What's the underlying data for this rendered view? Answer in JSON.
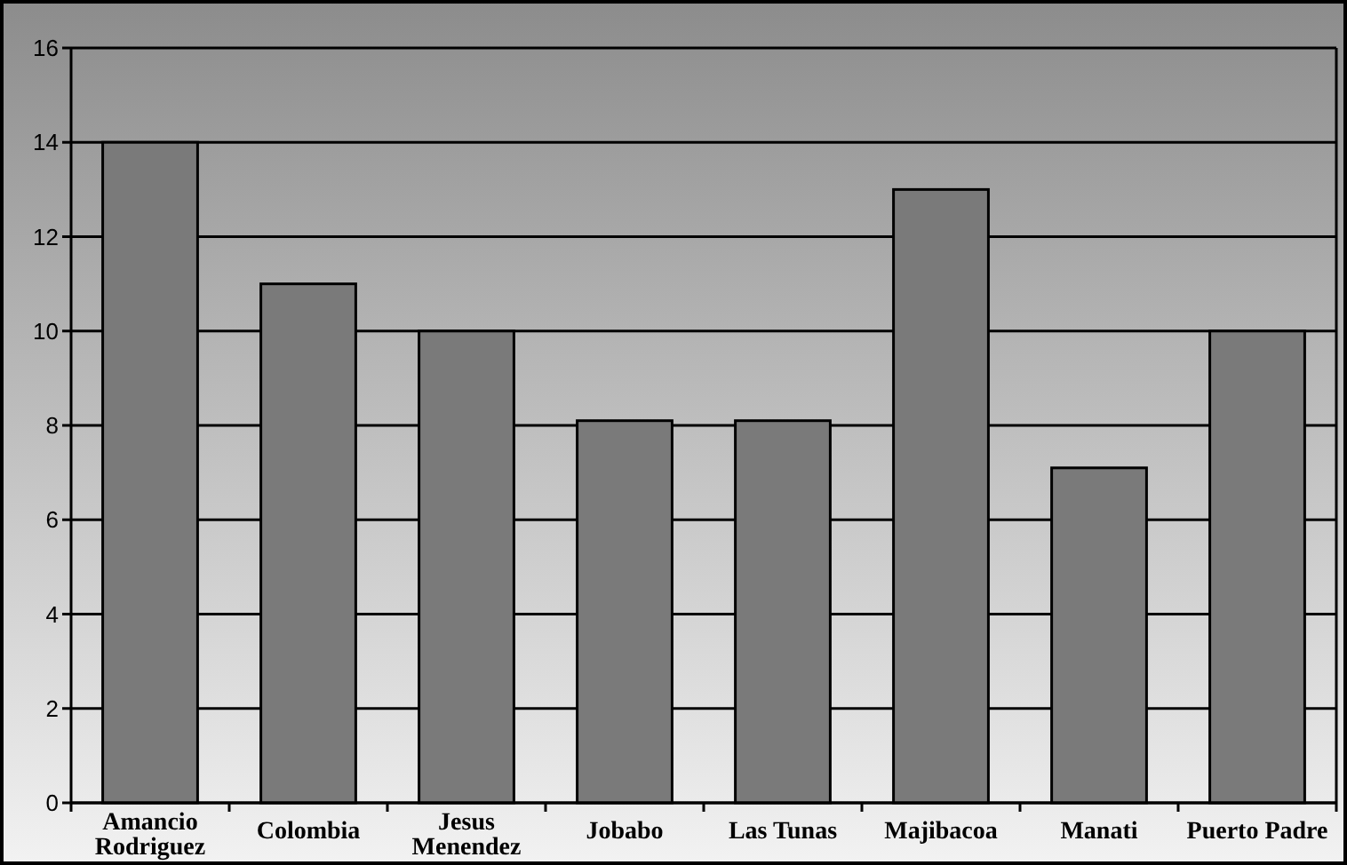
{
  "chart_data": {
    "type": "bar",
    "categories": [
      "Amancio Rodriguez",
      "Colombia",
      "Jesus Menendez",
      "Jobabo",
      "Las Tunas",
      "Majibacoa",
      "Manati",
      "Puerto Padre"
    ],
    "values": [
      14,
      11,
      10,
      8.1,
      8.1,
      13,
      7.1,
      10
    ],
    "color": "#7a7a7a",
    "ylim": [
      0,
      16
    ],
    "yticks": [
      0,
      2,
      4,
      6,
      8,
      10,
      12,
      14,
      16
    ],
    "grid": "y"
  }
}
